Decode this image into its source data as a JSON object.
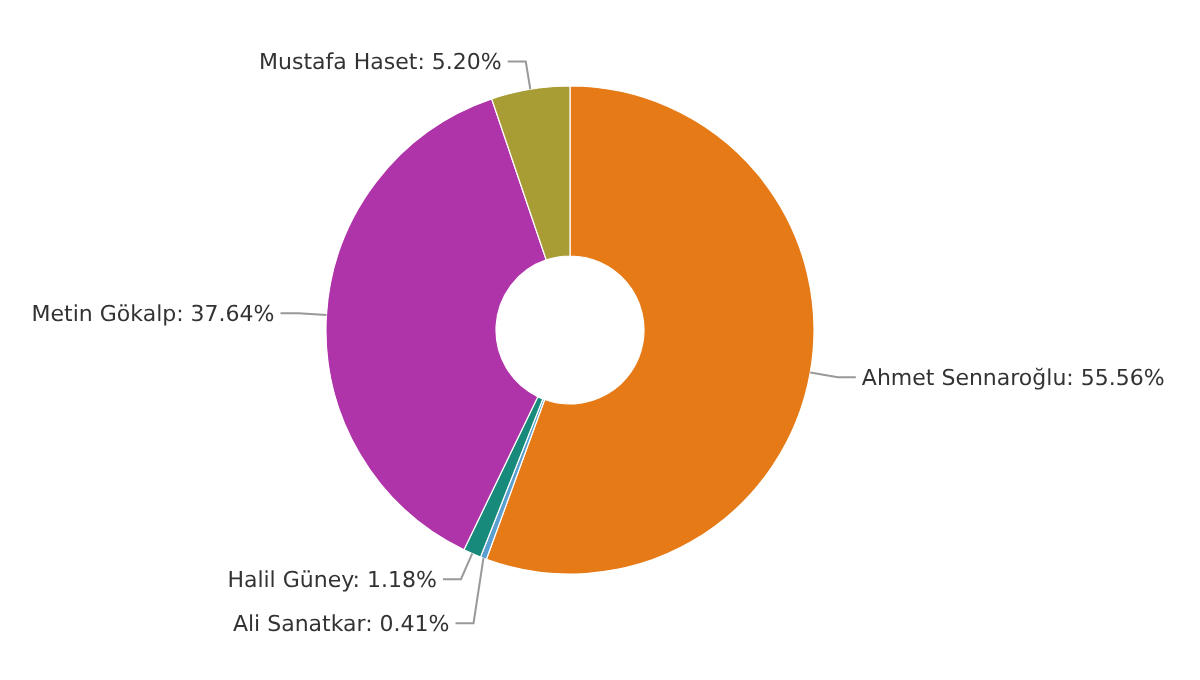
{
  "chart_data": {
    "type": "donut",
    "categories": [
      "Ahmet Sennaroğlu",
      "Ali Sanatkar",
      "Halil Güney",
      "Metin Gökalp",
      "Mustafa Haset"
    ],
    "values": [
      55.56,
      0.41,
      1.18,
      37.64,
      5.2
    ],
    "value_labels": [
      "55.56%",
      "0.41%",
      "1.18%",
      "37.64%",
      "5.20%"
    ],
    "colors": [
      "#e67a17",
      "#5b9fd0",
      "#178a7c",
      "#b034a9",
      "#a89d35"
    ]
  }
}
